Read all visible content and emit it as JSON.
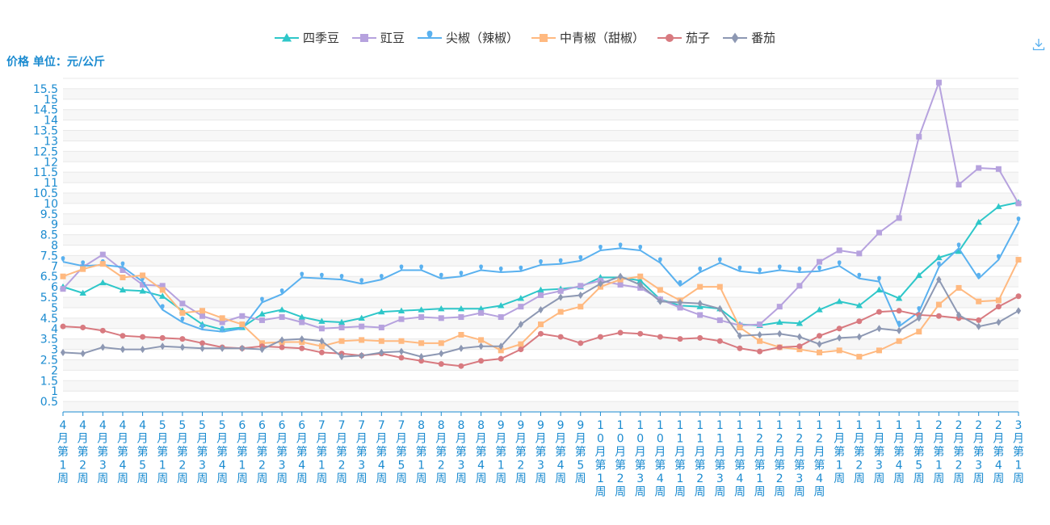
{
  "chart_data": {
    "type": "line",
    "ylabel": "价格 单位：元/公斤",
    "ylim": [
      0,
      16
    ],
    "y_ticks": [
      "0.5",
      "1",
      "1.5",
      "2",
      "2.5",
      "3",
      "3.5",
      "4",
      "4.5",
      "5",
      "5.5",
      "6",
      "6.5",
      "7",
      "7.5",
      "8",
      "8.5",
      "9",
      "9.5",
      "10",
      "10.5",
      "11",
      "11.5",
      "12",
      "12.5",
      "13",
      "13.5",
      "14",
      "14.5",
      "15",
      "15.5"
    ],
    "legend_position": "top-center",
    "grid": true,
    "categories": [
      "4月第1周",
      "4月第2周",
      "4月第3周",
      "4月第4周",
      "4月第5周",
      "5月第1周",
      "5月第2周",
      "5月第3周",
      "5月第4周",
      "6月第1周",
      "6月第2周",
      "6月第3周",
      "6月第4周",
      "7月第1周",
      "7月第2周",
      "7月第3周",
      "7月第4周",
      "7月第5周",
      "8月第1周",
      "8月第2周",
      "8月第3周",
      "8月第4周",
      "9月第1周",
      "9月第2周",
      "9月第3周",
      "9月第4周",
      "9月第5周",
      "10月第1周",
      "10月第2周",
      "10月第3周",
      "10月第4周",
      "11月第1周",
      "11月第2周",
      "11月第3周",
      "11月第4周",
      "12月第1周",
      "12月第2周",
      "12月第3周",
      "12月第4周",
      "1月第1周",
      "1月第2周",
      "1月第3周",
      "1月第4周",
      "1月第5周",
      "2月第1周",
      "2月第2周",
      "2月第3周",
      "2月第4周",
      "3月第1周"
    ],
    "series": [
      {
        "name": "四季豆",
        "color": "#2ec7c9",
        "marker": "triangle",
        "values": [
          6.0,
          5.7,
          6.2,
          5.85,
          5.8,
          5.55,
          4.85,
          4.2,
          3.95,
          4.05,
          4.7,
          4.9,
          4.55,
          4.35,
          4.3,
          4.5,
          4.8,
          4.85,
          4.9,
          4.95,
          4.95,
          4.95,
          5.1,
          5.45,
          5.85,
          5.9,
          6.0,
          6.45,
          6.45,
          6.3,
          5.4,
          5.1,
          5.05,
          4.95,
          4.2,
          4.15,
          4.3,
          4.25,
          4.9,
          5.3,
          5.1,
          5.85,
          5.45,
          6.55,
          7.4,
          7.7,
          9.1,
          9.85,
          10.05
        ]
      },
      {
        "name": "豇豆",
        "color": "#b6a2de",
        "marker": "square",
        "values": [
          5.9,
          6.95,
          7.55,
          6.8,
          6.1,
          6.05,
          5.2,
          4.6,
          4.3,
          4.6,
          4.4,
          4.55,
          4.3,
          4.0,
          4.05,
          4.1,
          4.05,
          4.45,
          4.55,
          4.5,
          4.55,
          4.75,
          4.55,
          5.05,
          5.6,
          5.8,
          6.05,
          6.3,
          6.1,
          5.95,
          5.4,
          5.0,
          4.65,
          4.4,
          4.15,
          4.2,
          5.05,
          6.05,
          7.2,
          7.75,
          7.6,
          8.6,
          9.3,
          13.2,
          15.8,
          10.9,
          11.7,
          11.65,
          10.0
        ]
      },
      {
        "name": "尖椒（辣椒）",
        "color": "#5ab1ef",
        "marker": "pin",
        "values": [
          7.2,
          7.0,
          7.05,
          6.95,
          6.25,
          4.9,
          4.3,
          3.95,
          3.85,
          4.0,
          5.25,
          5.65,
          6.45,
          6.4,
          6.35,
          6.15,
          6.35,
          6.8,
          6.8,
          6.4,
          6.5,
          6.8,
          6.7,
          6.75,
          7.05,
          7.1,
          7.25,
          7.75,
          7.85,
          7.75,
          7.15,
          6.05,
          6.7,
          7.15,
          6.75,
          6.65,
          6.8,
          6.7,
          6.75,
          7.0,
          6.4,
          6.25,
          4.1,
          4.8,
          6.95,
          7.85,
          6.4,
          7.3,
          9.1
        ]
      },
      {
        "name": "中青椒（甜椒）",
        "color": "#ffb980",
        "marker": "square",
        "values": [
          6.5,
          6.85,
          7.1,
          6.45,
          6.55,
          5.85,
          4.75,
          4.85,
          4.5,
          4.2,
          3.3,
          3.35,
          3.35,
          3.15,
          3.4,
          3.45,
          3.4,
          3.4,
          3.3,
          3.3,
          3.7,
          3.45,
          2.95,
          3.25,
          4.2,
          4.8,
          5.05,
          6.0,
          6.35,
          6.5,
          5.85,
          5.35,
          6.0,
          6.0,
          4.05,
          3.4,
          3.1,
          3.0,
          2.85,
          2.95,
          2.65,
          2.95,
          3.4,
          3.85,
          5.15,
          5.95,
          5.3,
          5.35,
          7.3
        ]
      },
      {
        "name": "茄子",
        "color": "#d87a80",
        "marker": "circle",
        "values": [
          4.1,
          4.05,
          3.9,
          3.65,
          3.6,
          3.55,
          3.5,
          3.3,
          3.1,
          3.05,
          3.15,
          3.1,
          3.05,
          2.85,
          2.8,
          2.7,
          2.8,
          2.6,
          2.45,
          2.3,
          2.2,
          2.45,
          2.55,
          3.0,
          3.75,
          3.6,
          3.3,
          3.6,
          3.8,
          3.75,
          3.6,
          3.5,
          3.55,
          3.4,
          3.05,
          2.9,
          3.1,
          3.15,
          3.65,
          4.0,
          4.35,
          4.8,
          4.85,
          4.65,
          4.6,
          4.5,
          4.4,
          5.05,
          5.55
        ]
      },
      {
        "name": "番茄",
        "color": "#8d98b3",
        "marker": "diamond",
        "values": [
          2.85,
          2.8,
          3.1,
          3.0,
          3.0,
          3.15,
          3.1,
          3.05,
          3.05,
          3.05,
          3.0,
          3.45,
          3.5,
          3.4,
          2.65,
          2.7,
          2.85,
          2.9,
          2.65,
          2.8,
          3.05,
          3.15,
          3.15,
          4.2,
          4.9,
          5.5,
          5.6,
          6.15,
          6.5,
          6.1,
          5.3,
          5.25,
          5.2,
          4.95,
          3.65,
          3.7,
          3.75,
          3.6,
          3.25,
          3.55,
          3.6,
          4.0,
          3.9,
          4.5,
          6.35,
          4.65,
          4.1,
          4.3,
          4.85
        ]
      }
    ]
  },
  "toolbar": {
    "download_icon": "download-icon"
  }
}
